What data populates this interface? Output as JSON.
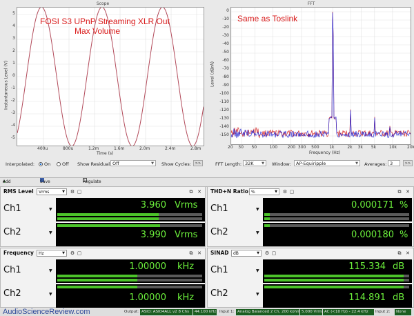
{
  "scope": {
    "title": "Scope",
    "annotation_line1": "FOSI S3 UPnP Streaming XLR Out",
    "annotation_line2": "Max Volume",
    "ylabel": "Instantaneous Level (V)",
    "xlabel": "Time (s)",
    "yticks": [
      "5",
      "4",
      "3",
      "2",
      "1",
      "0",
      "-1",
      "-2",
      "-3",
      "-4",
      "-5"
    ],
    "xticks": [
      "400u",
      "800u",
      "1.2m",
      "1.6m",
      "2.0m",
      "2.4m",
      "2.8m"
    ],
    "interpolated_label": "Interpolated:",
    "on_label": "On",
    "off_label": "Off",
    "show_residual_label": "Show Residual:",
    "show_residual_value": "Off",
    "show_cycles_label": "Show Cycles:",
    "more_btn": ">>",
    "wave_color": "#b24a5a"
  },
  "fft": {
    "title": "FFT",
    "annotation": "Same as Toslink",
    "ylabel": "Level (dBrA)",
    "xlabel": "Frequency (Hz)",
    "yticks": [
      "0",
      "-10",
      "-20",
      "-30",
      "-40",
      "-50",
      "-60",
      "-70",
      "-80",
      "-90",
      "-100",
      "-110",
      "-120",
      "-130",
      "-140",
      "-150"
    ],
    "xticks": [
      "20",
      "30",
      "50",
      "100",
      "200",
      "300",
      "500",
      "1k",
      "2k",
      "3k",
      "5k",
      "10k",
      "20k"
    ],
    "fft_length_label": "FFT Length:",
    "fft_length_value": "32K",
    "window_label": "Window:",
    "window_value": "AP-Equiripple",
    "averages_label": "Averages:",
    "averages_value": "3",
    "more_btn": ">>",
    "ch1_color": "#d42a2a",
    "ch2_color": "#2a2ad4"
  },
  "toolbar": {
    "add_meter": "Add Meter",
    "save_meter_data": "Save Meter Data",
    "regulate": "Regulate"
  },
  "meters": {
    "rms": {
      "title": "RMS Level",
      "unit_select": "Vrms",
      "ch1_label": "Ch1",
      "ch1_value": "3.960",
      "ch1_unit": "Vrms",
      "ch1_fill": 0.7,
      "ch2_label": "Ch2",
      "ch2_value": "3.990",
      "ch2_unit": "Vrms",
      "ch2_fill": 0.71
    },
    "thdn": {
      "title": "THD+N Ratio",
      "unit_select": "%",
      "ch1_label": "Ch1",
      "ch1_value": "0.000171",
      "ch1_unit": "%",
      "ch1_fill": 0.04,
      "ch2_label": "Ch2",
      "ch2_value": "0.000180",
      "ch2_unit": "%",
      "ch2_fill": 0.04
    },
    "freq": {
      "title": "Frequency",
      "unit_select": "Hz",
      "ch1_label": "Ch1",
      "ch1_value": "1.00000",
      "ch1_unit": "kHz",
      "ch1_fill": 0.55,
      "ch2_label": "Ch2",
      "ch2_value": "1.00000",
      "ch2_unit": "kHz",
      "ch2_fill": 0.55
    },
    "sinad": {
      "title": "SINAD",
      "unit_select": "dB",
      "ch1_label": "Ch1",
      "ch1_value": "115.334",
      "ch1_unit": "dB",
      "ch1_fill": 0.96,
      "ch2_label": "Ch2",
      "ch2_value": "114.891",
      "ch2_unit": "dB",
      "ch2_fill": 0.96
    }
  },
  "statusbar": {
    "watermark": "AudioScienceReview.com",
    "output_label": "Output:",
    "output_device": "ASIO: ASIO4ALL v2 8 Chs",
    "sample_rate": "44.100 kHz",
    "input1_label": "Input 1:",
    "input1_value": "Analog Balanced 2 Ch, 200 kohm",
    "level": "5.000 Vrms",
    "ac_filter": "AC (<10 Hz) - 22.4 kHz",
    "input2_label": "Input 2:",
    "input2_value": "None"
  }
}
